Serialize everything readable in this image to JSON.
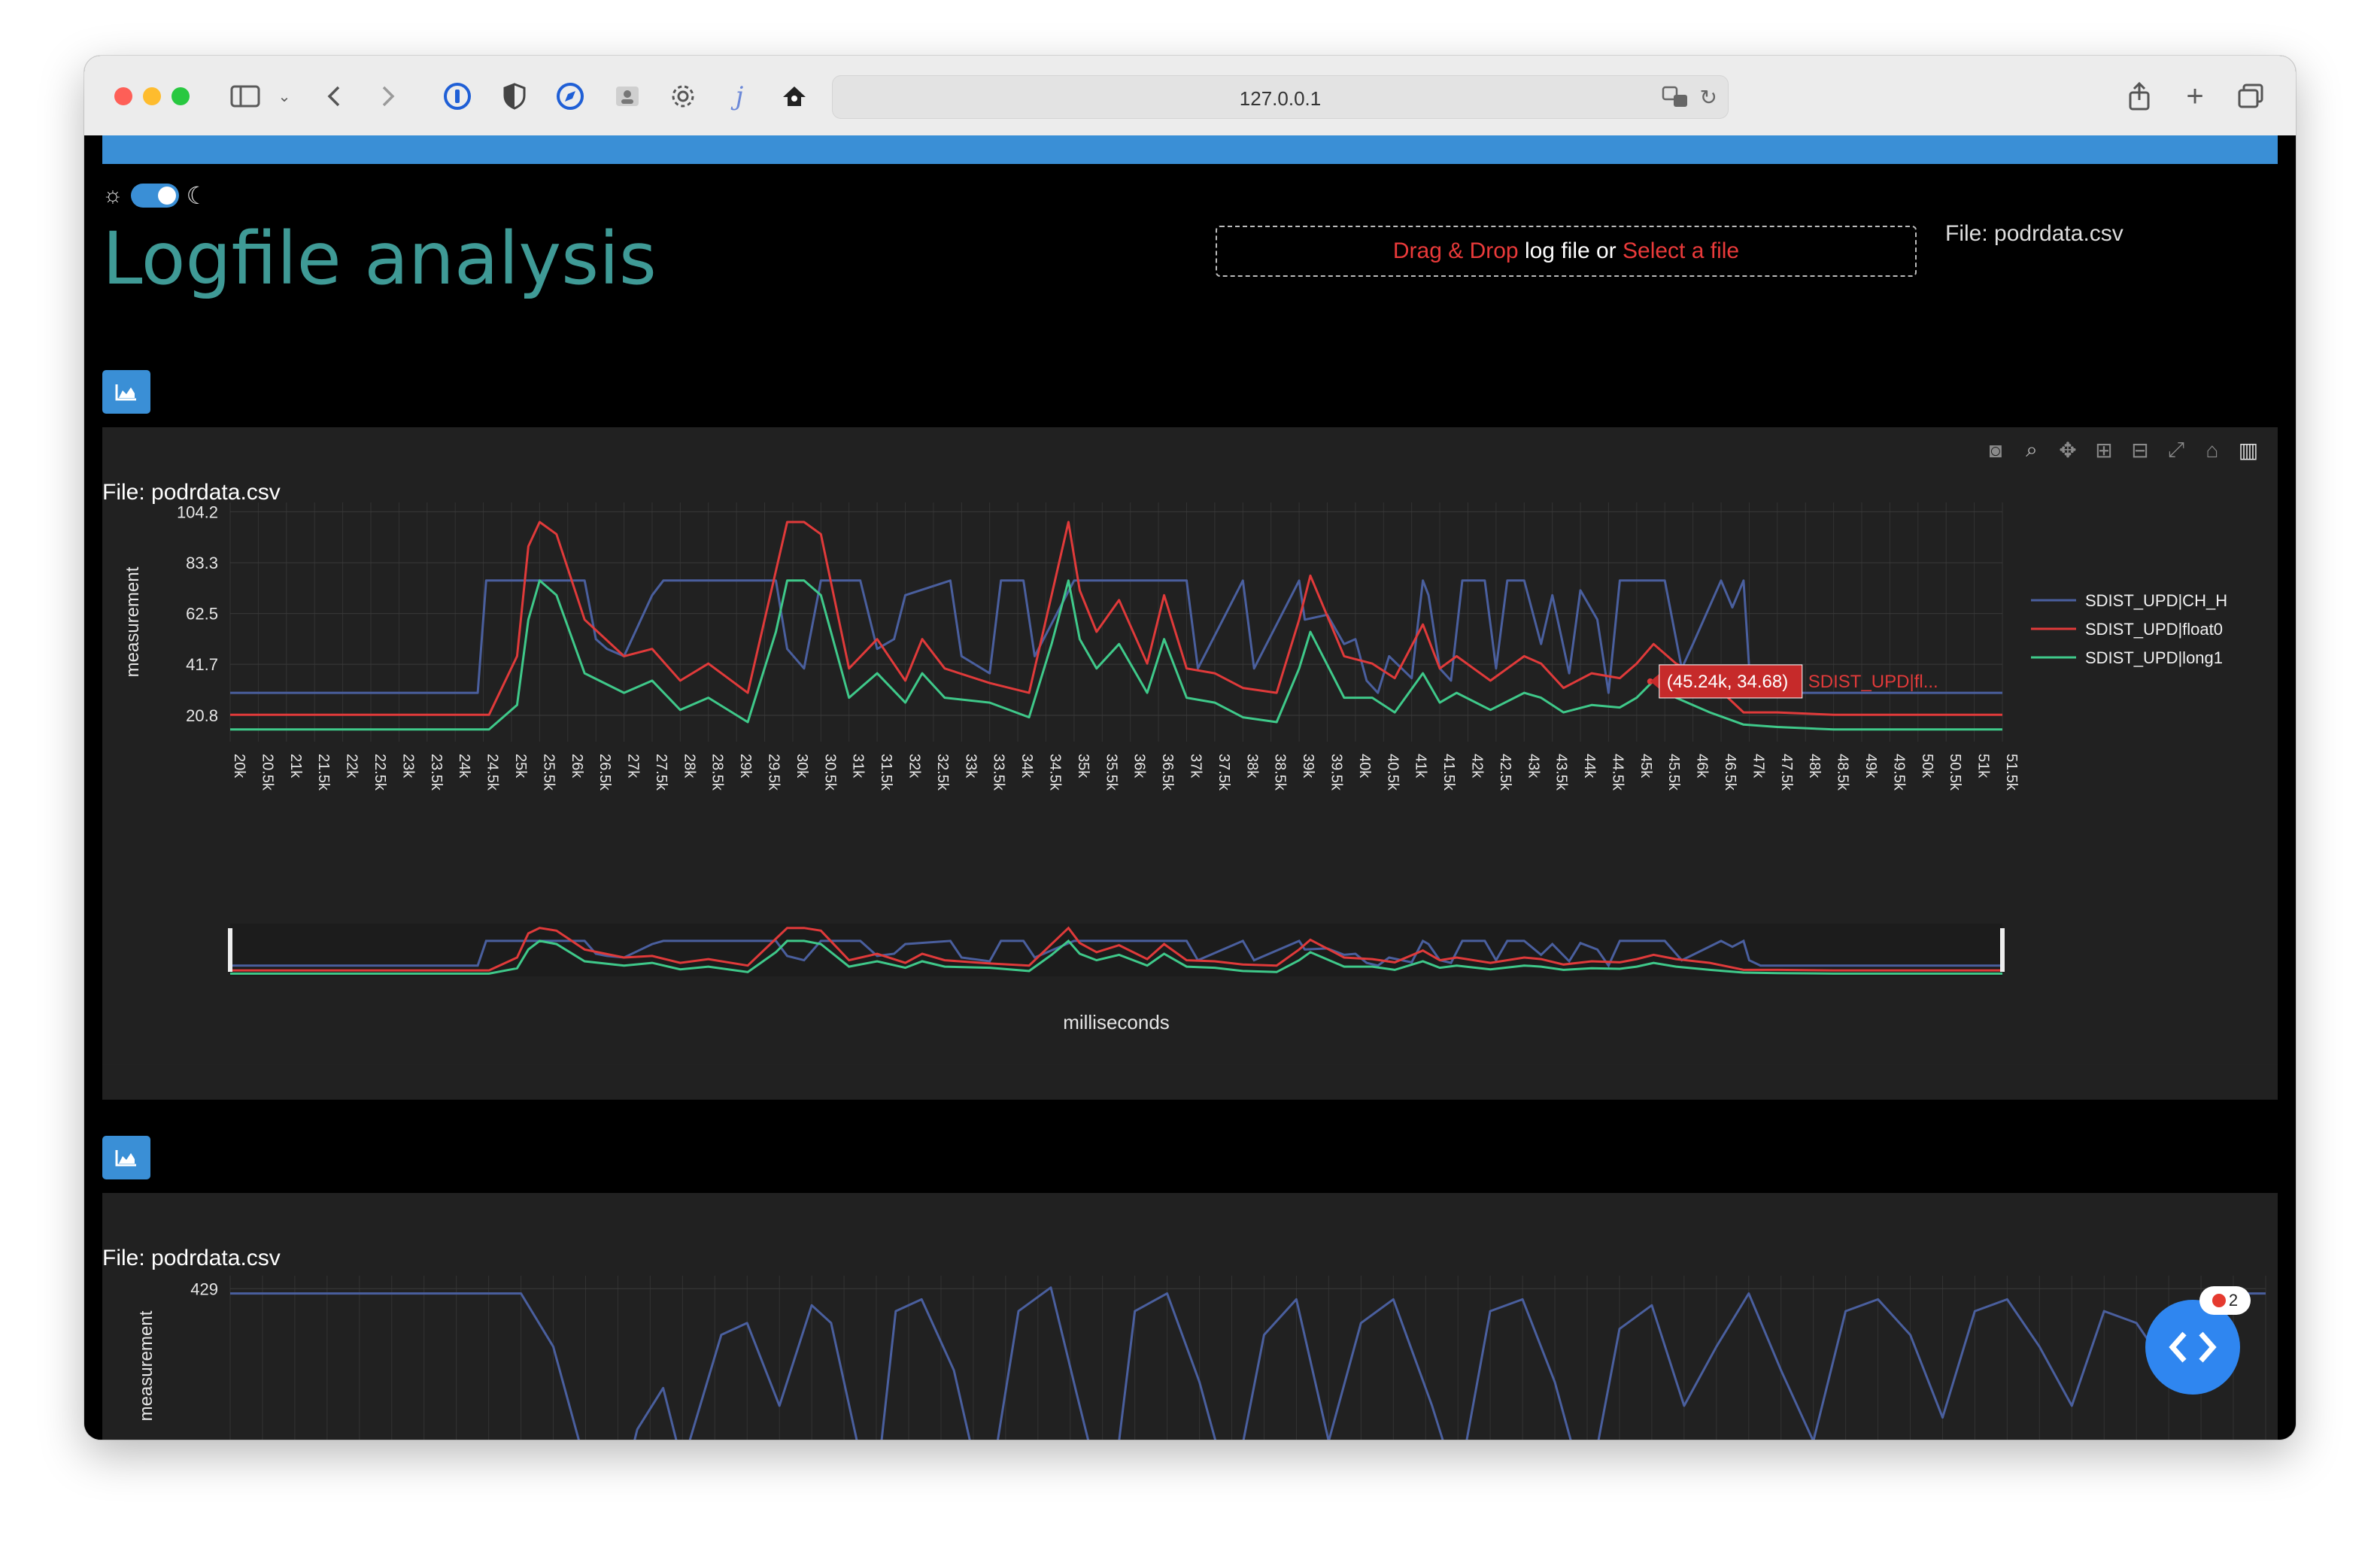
{
  "browser": {
    "url": "127.0.0.1"
  },
  "page": {
    "title": "Logfile analysis",
    "dropzone": {
      "drag_drop": "Drag & Drop",
      "middle": " log file or ",
      "select": "Select a file"
    },
    "file_label_top": "File: podrdata.csv",
    "panel1": {
      "file_label": "File: podrdata.csv"
    },
    "panel2": {
      "file_label": "File: podrdata.csv"
    },
    "fab": {
      "badge_count": "2"
    }
  },
  "colors": {
    "accent_blue": "#3a8fd6",
    "title_teal": "#3f9a96",
    "series_blue": "#4a5f9e",
    "series_red": "#e03a3a",
    "series_green": "#3fc98a"
  },
  "chart_data": [
    {
      "type": "line",
      "title": "File: podrdata.csv",
      "xlabel": "milliseconds",
      "ylabel": "measurement",
      "xlim": [
        20000,
        51500
      ],
      "ylim": [
        10,
        108
      ],
      "yticks": [
        20.8,
        41.7,
        62.5,
        83.3,
        104.2
      ],
      "ytick_labels": [
        "20.8",
        "41.7",
        "62.5",
        "83.3",
        "104.2"
      ],
      "xtick_labels": [
        "20k",
        "20.5k",
        "21k",
        "21.5k",
        "22k",
        "22.5k",
        "23k",
        "23.5k",
        "24k",
        "24.5k",
        "25k",
        "25.5k",
        "26k",
        "26.5k",
        "27k",
        "27.5k",
        "28k",
        "28.5k",
        "29k",
        "29.5k",
        "30k",
        "30.5k",
        "31k",
        "31.5k",
        "32k",
        "32.5k",
        "33k",
        "33.5k",
        "34k",
        "34.5k",
        "35k",
        "35.5k",
        "36k",
        "36.5k",
        "37k",
        "37.5k",
        "38k",
        "38.5k",
        "39k",
        "39.5k",
        "40k",
        "40.5k",
        "41k",
        "41.5k",
        "42k",
        "42.5k",
        "43k",
        "43.5k",
        "44k",
        "44.5k",
        "45k",
        "45.5k",
        "46k",
        "46.5k",
        "47k",
        "47.5k",
        "48k",
        "48.5k",
        "49k",
        "49.5k",
        "50k",
        "50.5k",
        "51k",
        "51.5k"
      ],
      "grid": true,
      "legend_position": "top-right",
      "series": [
        {
          "name": "SDIST_UPD|CH_H",
          "color": "#4a5f9e",
          "x": [
            20000,
            24400,
            24550,
            25000,
            26300,
            26500,
            26700,
            27000,
            27300,
            27500,
            27700,
            28000,
            29700,
            29900,
            30200,
            30500,
            31200,
            31500,
            31800,
            32000,
            32800,
            33000,
            33500,
            33700,
            34100,
            34300,
            35000,
            35400,
            35600,
            37000,
            37200,
            38000,
            38200,
            39000,
            39100,
            39500,
            39800,
            40000,
            40200,
            40400,
            40600,
            41000,
            41200,
            41300,
            41500,
            41700,
            41900,
            42300,
            42500,
            42700,
            43000,
            43300,
            43500,
            43800,
            44000,
            44300,
            44500,
            44700,
            45100,
            45500,
            45800,
            46000,
            46500,
            46700,
            46900,
            47000,
            47200,
            51500
          ],
          "y": [
            30,
            30,
            76,
            76,
            76,
            52,
            48,
            45,
            60,
            70,
            76,
            76,
            76,
            48,
            40,
            76,
            76,
            48,
            52,
            70,
            76,
            45,
            38,
            76,
            76,
            45,
            76,
            76,
            76,
            76,
            40,
            76,
            40,
            76,
            60,
            62,
            50,
            52,
            35,
            30,
            45,
            36,
            76,
            70,
            40,
            35,
            76,
            76,
            40,
            76,
            76,
            50,
            70,
            38,
            72,
            60,
            30,
            76,
            76,
            76,
            40,
            50,
            76,
            65,
            76,
            40,
            30,
            30
          ]
        },
        {
          "name": "SDIST_UPD|float0",
          "color": "#e03a3a",
          "x": [
            20000,
            24600,
            25100,
            25300,
            25500,
            25800,
            26300,
            27000,
            27500,
            28000,
            28500,
            29200,
            29700,
            29900,
            30200,
            30500,
            31000,
            31500,
            32000,
            32300,
            32700,
            33500,
            34200,
            34600,
            34900,
            35100,
            35400,
            35800,
            36300,
            36600,
            37000,
            37500,
            38000,
            38600,
            39000,
            39200,
            39800,
            40300,
            40700,
            41200,
            41500,
            41800,
            42400,
            43000,
            43300,
            43700,
            44200,
            44700,
            45000,
            45300,
            45700,
            46300,
            46900,
            47500,
            48500,
            51500
          ],
          "y": [
            21,
            21,
            45,
            90,
            100,
            95,
            60,
            45,
            48,
            35,
            42,
            30,
            80,
            100,
            100,
            95,
            40,
            52,
            35,
            52,
            40,
            34,
            30,
            70,
            100,
            72,
            55,
            68,
            42,
            70,
            40,
            38,
            32,
            30,
            60,
            78,
            45,
            42,
            36,
            58,
            40,
            45,
            35,
            45,
            42,
            32,
            38,
            36,
            42,
            50,
            42,
            35,
            22,
            22,
            21,
            21
          ]
        },
        {
          "name": "SDIST_UPD|long1",
          "color": "#3fc98a",
          "x": [
            20000,
            24600,
            25100,
            25300,
            25500,
            25800,
            26300,
            27000,
            27500,
            28000,
            28500,
            29200,
            29700,
            29900,
            30200,
            30500,
            31000,
            31500,
            32000,
            32300,
            32700,
            33500,
            34200,
            34600,
            34900,
            35100,
            35400,
            35800,
            36300,
            36600,
            37000,
            37500,
            38000,
            38600,
            39000,
            39200,
            39800,
            40300,
            40700,
            41200,
            41500,
            41800,
            42400,
            43000,
            43300,
            43700,
            44200,
            44700,
            45000,
            45300,
            45700,
            46300,
            46900,
            47500,
            48500,
            51500
          ],
          "y": [
            15,
            15,
            25,
            60,
            76,
            70,
            38,
            30,
            35,
            23,
            28,
            18,
            55,
            76,
            76,
            70,
            28,
            38,
            26,
            38,
            28,
            26,
            20,
            50,
            76,
            52,
            40,
            50,
            30,
            52,
            28,
            26,
            20,
            18,
            40,
            55,
            28,
            28,
            22,
            38,
            26,
            30,
            23,
            30,
            28,
            22,
            25,
            24,
            28,
            35,
            28,
            22,
            17,
            16,
            15,
            15
          ]
        }
      ],
      "hover_label": "(45.24k, 34.68)",
      "hover_series_label": "SDIST_UPD|fl..."
    },
    {
      "type": "line",
      "title": "File: podrdata.csv",
      "ylabel": "measurement",
      "yticks": [
        429
      ],
      "ytick_labels": [
        "429"
      ],
      "series": [
        {
          "name": "",
          "color": "#4a5f9e",
          "x": [
            20000,
            24500,
            25000,
            25400,
            25800,
            26300,
            26700,
            27000,
            27600,
            28000,
            28500,
            29000,
            29300,
            29700,
            30000,
            30300,
            30700,
            31200,
            31700,
            32200,
            32700,
            33100,
            33600,
            34000,
            34500,
            35000,
            35500,
            36000,
            36500,
            37000,
            37500,
            38000,
            38600,
            39000,
            39500,
            40000,
            40500,
            41000,
            41500,
            42000,
            42500,
            43000,
            43500,
            44000,
            44500,
            45000,
            45500,
            46000,
            46500,
            47000,
            47500,
            48000,
            48500,
            49000,
            49500,
            50000,
            50500,
            51000,
            51500
          ],
          "y": [
            425,
            425,
            380,
            300,
            200,
            310,
            345,
            280,
            390,
            400,
            330,
            415,
            400,
            300,
            260,
            410,
            420,
            360,
            240,
            410,
            430,
            340,
            230,
            410,
            425,
            350,
            250,
            390,
            420,
            300,
            400,
            420,
            330,
            260,
            410,
            420,
            350,
            250,
            395,
            415,
            330,
            380,
            425,
            360,
            300,
            410,
            420,
            390,
            320,
            410,
            420,
            380,
            330,
            410,
            400,
            360,
            420,
            425,
            425
          ]
        }
      ]
    }
  ]
}
